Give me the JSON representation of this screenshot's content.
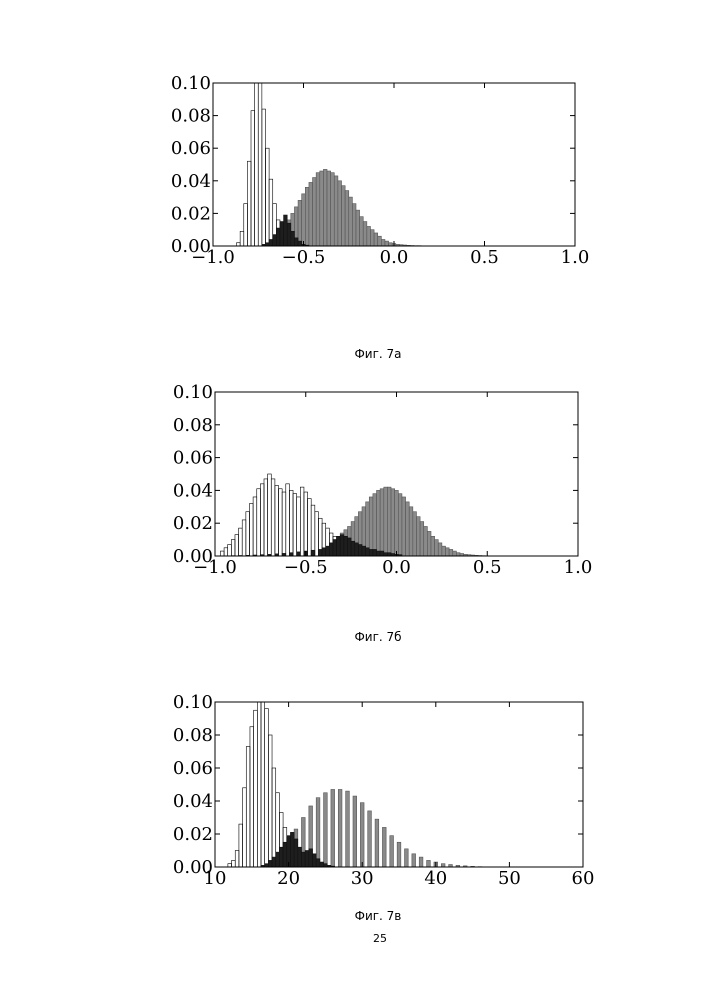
{
  "page": {
    "page_number": "25"
  },
  "colors": {
    "series_a": "#ffffff",
    "series_b": "#8a8a8a",
    "overlap": "#1e1e1e",
    "axis": "#000000"
  },
  "chart_data": [
    {
      "type": "bar",
      "caption": "Фиг. 7а",
      "xlim": [
        -1.0,
        1.0
      ],
      "ylim": [
        0.0,
        0.1
      ],
      "x_ticks": [
        -1.0,
        -0.5,
        0.0,
        0.5,
        1.0
      ],
      "x_tick_labels": [
        "−1.0",
        "−0.5",
        "0.0",
        "0.5",
        "1.0"
      ],
      "y_ticks": [
        0.0,
        0.02,
        0.04,
        0.06,
        0.08,
        0.1
      ],
      "y_tick_labels": [
        "0.00",
        "0.02",
        "0.04",
        "0.06",
        "0.08",
        "0.10"
      ],
      "grid": false,
      "series": [
        {
          "style": "open",
          "x": [
            -0.86,
            -0.84,
            -0.82,
            -0.8,
            -0.78,
            -0.76,
            -0.74,
            -0.72,
            -0.7,
            -0.68,
            -0.66,
            -0.64,
            -0.62,
            -0.6,
            -0.58,
            -0.56
          ],
          "values": [
            0.002,
            0.009,
            0.026,
            0.052,
            0.083,
            0.1,
            0.1,
            0.084,
            0.06,
            0.041,
            0.026,
            0.016,
            0.01,
            0.006,
            0.003,
            0.001
          ]
        },
        {
          "style": "gray",
          "x": [
            -0.66,
            -0.64,
            -0.62,
            -0.6,
            -0.58,
            -0.56,
            -0.54,
            -0.52,
            -0.5,
            -0.48,
            -0.46,
            -0.44,
            -0.42,
            -0.4,
            -0.38,
            -0.36,
            -0.34,
            -0.32,
            -0.3,
            -0.28,
            -0.26,
            -0.24,
            -0.22,
            -0.2,
            -0.18,
            -0.16,
            -0.14,
            -0.12,
            -0.1,
            -0.08,
            -0.06,
            -0.04,
            -0.02,
            0.0,
            0.02,
            0.04,
            0.06,
            0.08,
            0.1,
            0.12,
            0.14,
            0.16,
            0.18,
            0.2,
            0.22,
            0.24,
            0.26
          ],
          "values": [
            0.003,
            0.005,
            0.008,
            0.012,
            0.016,
            0.02,
            0.024,
            0.028,
            0.032,
            0.036,
            0.039,
            0.042,
            0.045,
            0.046,
            0.047,
            0.046,
            0.045,
            0.043,
            0.04,
            0.037,
            0.034,
            0.03,
            0.026,
            0.022,
            0.018,
            0.015,
            0.012,
            0.01,
            0.008,
            0.006,
            0.004,
            0.003,
            0.002,
            0.0015,
            0.001,
            0.0008,
            0.0006,
            0.0004,
            0.0003,
            0.0002,
            0.0002,
            0.0001,
            0.0001,
            0.0001,
            0.0001,
            0.0001,
            0.0001
          ]
        },
        {
          "style": "overlap",
          "x": [
            -0.72,
            -0.7,
            -0.68,
            -0.66,
            -0.64,
            -0.62,
            -0.6,
            -0.58,
            -0.56,
            -0.54,
            -0.52,
            -0.5,
            -0.48
          ],
          "values": [
            0.001,
            0.002,
            0.004,
            0.007,
            0.011,
            0.015,
            0.019,
            0.014,
            0.009,
            0.005,
            0.003,
            0.001,
            0.0005
          ]
        }
      ]
    },
    {
      "type": "bar",
      "caption": "Фиг. 7б",
      "xlim": [
        -1.0,
        1.0
      ],
      "ylim": [
        0.0,
        0.1
      ],
      "x_ticks": [
        -1.0,
        -0.5,
        0.0,
        0.5,
        1.0
      ],
      "x_tick_labels": [
        "−1.0",
        "−0.5",
        "0.0",
        "0.5",
        "1.0"
      ],
      "y_ticks": [
        0.0,
        0.02,
        0.04,
        0.06,
        0.08,
        0.1
      ],
      "y_tick_labels": [
        "0.00",
        "0.02",
        "0.04",
        "0.06",
        "0.08",
        "0.10"
      ],
      "grid": false,
      "series": [
        {
          "style": "open",
          "x": [
            -0.96,
            -0.94,
            -0.92,
            -0.9,
            -0.88,
            -0.86,
            -0.84,
            -0.82,
            -0.8,
            -0.78,
            -0.76,
            -0.74,
            -0.72,
            -0.7,
            -0.68,
            -0.66,
            -0.64,
            -0.62,
            -0.6,
            -0.58,
            -0.56,
            -0.54,
            -0.52,
            -0.5,
            -0.48,
            -0.46,
            -0.44,
            -0.42,
            -0.4,
            -0.38,
            -0.36,
            -0.34,
            -0.32,
            -0.3,
            -0.28,
            -0.26,
            -0.24,
            -0.22,
            -0.2
          ],
          "values": [
            0.003,
            0.005,
            0.007,
            0.01,
            0.013,
            0.017,
            0.022,
            0.027,
            0.032,
            0.036,
            0.041,
            0.044,
            0.047,
            0.05,
            0.047,
            0.043,
            0.041,
            0.039,
            0.044,
            0.04,
            0.038,
            0.036,
            0.042,
            0.039,
            0.035,
            0.031,
            0.027,
            0.023,
            0.02,
            0.017,
            0.014,
            0.012,
            0.01,
            0.008,
            0.006,
            0.005,
            0.004,
            0.003,
            0.002
          ]
        },
        {
          "style": "gray",
          "x": [
            -0.34,
            -0.32,
            -0.3,
            -0.28,
            -0.26,
            -0.24,
            -0.22,
            -0.2,
            -0.18,
            -0.16,
            -0.14,
            -0.12,
            -0.1,
            -0.08,
            -0.06,
            -0.04,
            -0.02,
            0.0,
            0.02,
            0.04,
            0.06,
            0.08,
            0.1,
            0.12,
            0.14,
            0.16,
            0.18,
            0.2,
            0.22,
            0.24,
            0.26,
            0.28,
            0.3,
            0.32,
            0.34,
            0.36,
            0.38,
            0.4,
            0.42,
            0.44,
            0.46,
            0.48,
            0.5,
            0.52
          ],
          "values": [
            0.01,
            0.012,
            0.014,
            0.016,
            0.018,
            0.021,
            0.024,
            0.027,
            0.03,
            0.033,
            0.036,
            0.038,
            0.04,
            0.041,
            0.042,
            0.042,
            0.041,
            0.04,
            0.038,
            0.036,
            0.033,
            0.03,
            0.027,
            0.024,
            0.021,
            0.018,
            0.015,
            0.012,
            0.01,
            0.008,
            0.006,
            0.005,
            0.004,
            0.003,
            0.002,
            0.0015,
            0.001,
            0.0008,
            0.0006,
            0.0004,
            0.0003,
            0.0002,
            0.0001,
            0.0001
          ]
        },
        {
          "style": "overlap",
          "x": [
            -0.9,
            -0.86,
            -0.82,
            -0.78,
            -0.74,
            -0.7,
            -0.66,
            -0.62,
            -0.58,
            -0.54,
            -0.5,
            -0.46,
            -0.42,
            -0.4,
            -0.38,
            -0.36,
            -0.34,
            -0.32,
            -0.3,
            -0.28,
            -0.26,
            -0.24,
            -0.22,
            -0.2,
            -0.18,
            -0.16,
            -0.14,
            -0.12,
            -0.1,
            -0.08,
            -0.06,
            -0.04,
            -0.02,
            0.0,
            0.02
          ],
          "values": [
            0.0002,
            0.0003,
            0.0004,
            0.0006,
            0.0008,
            0.001,
            0.0013,
            0.0016,
            0.002,
            0.0025,
            0.003,
            0.0035,
            0.004,
            0.005,
            0.006,
            0.008,
            0.01,
            0.012,
            0.013,
            0.012,
            0.011,
            0.009,
            0.008,
            0.007,
            0.006,
            0.005,
            0.004,
            0.004,
            0.003,
            0.003,
            0.002,
            0.002,
            0.0015,
            0.001,
            0.0008
          ]
        }
      ]
    },
    {
      "type": "bar",
      "caption": "Фиг. 7в",
      "xlim": [
        10,
        60
      ],
      "ylim": [
        0.0,
        0.1
      ],
      "x_ticks": [
        10,
        20,
        30,
        40,
        50,
        60
      ],
      "x_tick_labels": [
        "10",
        "20",
        "30",
        "40",
        "50",
        "60"
      ],
      "y_ticks": [
        0.0,
        0.02,
        0.04,
        0.06,
        0.08,
        0.1
      ],
      "y_tick_labels": [
        "0.00",
        "0.02",
        "0.04",
        "0.06",
        "0.08",
        "0.10"
      ],
      "grid": false,
      "series": [
        {
          "style": "open",
          "x": [
            12.0,
            12.5,
            13.0,
            13.5,
            14.0,
            14.5,
            15.0,
            15.5,
            16.0,
            16.5,
            17.0,
            17.5,
            18.0,
            18.5,
            19.0,
            19.5,
            20.0,
            20.5,
            21.0,
            21.5,
            22.0,
            22.5,
            23.0,
            23.5,
            24.0
          ],
          "values": [
            0.002,
            0.004,
            0.01,
            0.026,
            0.048,
            0.073,
            0.085,
            0.095,
            0.1,
            0.1,
            0.096,
            0.08,
            0.06,
            0.045,
            0.033,
            0.024,
            0.018,
            0.014,
            0.01,
            0.007,
            0.005,
            0.003,
            0.002,
            0.001,
            0.0005
          ]
        },
        {
          "style": "gray",
          "x": [
            18,
            19,
            20,
            21,
            22,
            23,
            24,
            25,
            26,
            27,
            28,
            29,
            30,
            31,
            32,
            33,
            34,
            35,
            36,
            37,
            38,
            39,
            40,
            41,
            42,
            43,
            44,
            45,
            46
          ],
          "values": [
            0.003,
            0.008,
            0.016,
            0.023,
            0.03,
            0.037,
            0.042,
            0.045,
            0.047,
            0.047,
            0.046,
            0.043,
            0.039,
            0.034,
            0.029,
            0.024,
            0.019,
            0.015,
            0.011,
            0.008,
            0.006,
            0.004,
            0.003,
            0.002,
            0.0015,
            0.001,
            0.0007,
            0.0004,
            0.0002
          ]
        },
        {
          "style": "overlap",
          "x": [
            16.5,
            17.0,
            17.5,
            18.0,
            18.5,
            19.0,
            19.5,
            20.0,
            20.5,
            21.0,
            21.5,
            22.0,
            22.5,
            23.0,
            23.5,
            24.0,
            24.5,
            25.0,
            25.5,
            26.0
          ],
          "values": [
            0.001,
            0.002,
            0.004,
            0.006,
            0.009,
            0.012,
            0.015,
            0.019,
            0.021,
            0.017,
            0.012,
            0.009,
            0.01,
            0.011,
            0.008,
            0.005,
            0.003,
            0.002,
            0.001,
            0.0005
          ]
        }
      ]
    }
  ]
}
